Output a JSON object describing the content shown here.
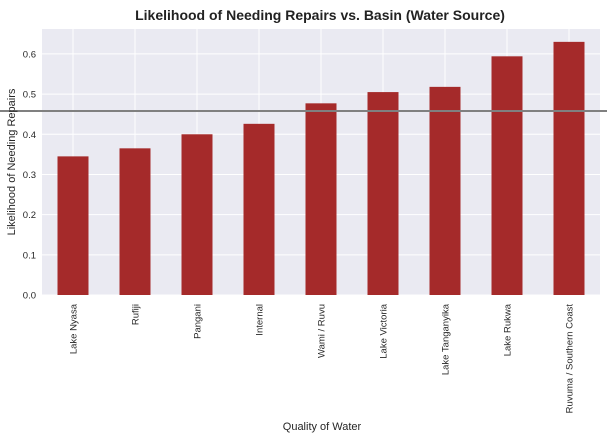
{
  "chart_data": {
    "type": "bar",
    "title": "Likelihood of Needing Repairs vs. Basin (Water Source)",
    "xlabel": "Quality of Water",
    "ylabel": "Likelihood of Needing Repairs",
    "categories": [
      "Lake Nyasa",
      "Rufiji",
      "Pangani",
      "Internal",
      "Wami / Ruvu",
      "Lake Victoria",
      "Lake Tanganyika",
      "Lake Rukwa",
      "Ruvuma / Southern Coast"
    ],
    "values": [
      0.345,
      0.365,
      0.4,
      0.426,
      0.477,
      0.505,
      0.518,
      0.594,
      0.63
    ],
    "reference_line": 0.458,
    "yticks": [
      "0.0",
      "0.1",
      "0.2",
      "0.3",
      "0.4",
      "0.5",
      "0.6"
    ],
    "ylim": [
      0,
      0.662
    ],
    "grid": true,
    "colors": {
      "bar": "#a52a2a",
      "reference_line": "#808080",
      "plot_background": "#eaeaf2",
      "grid": "#ffffff"
    }
  }
}
